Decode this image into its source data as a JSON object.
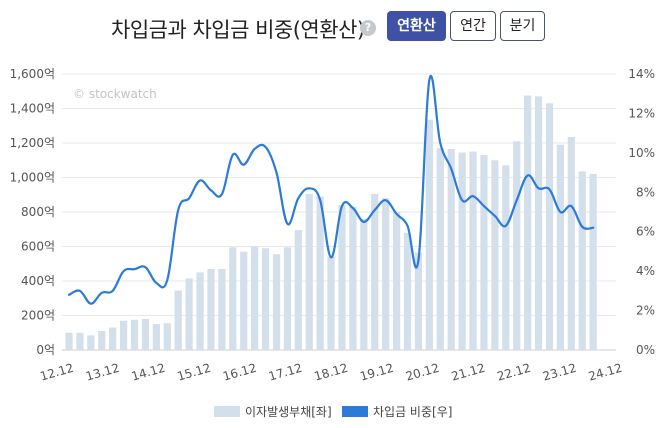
{
  "header": {
    "title": "차입금과 차입금 비중(연환산)",
    "help_icon": "question-icon",
    "help_glyph": "?",
    "buttons": [
      {
        "label": "연환산",
        "active": true
      },
      {
        "label": "연간",
        "active": false
      },
      {
        "label": "분기",
        "active": false
      }
    ]
  },
  "colors": {
    "bar": "#d4dfec",
    "line": "#2b7bd8",
    "grid": "#e8e8e8"
  },
  "watermark": "© stockwatch",
  "chart_data": {
    "type": "bar+line",
    "title": "차입금과 차입금 비중(연환산)",
    "x_tick_labels": [
      "12.12",
      "13.12",
      "14.12",
      "15.12",
      "16.12",
      "17.12",
      "18.12",
      "19.12",
      "20.12",
      "21.12",
      "22.12",
      "23.12",
      "24.12"
    ],
    "left_axis": {
      "unit": "억",
      "ylim": [
        0,
        1600
      ],
      "tick_labels": [
        "0억",
        "200억",
        "400억",
        "600억",
        "800억",
        "1,000억",
        "1,200억",
        "1,400억",
        "1,600억"
      ],
      "tick_values": [
        0,
        200,
        400,
        600,
        800,
        1000,
        1200,
        1400,
        1600
      ]
    },
    "right_axis": {
      "unit": "%",
      "ylim": [
        0,
        14
      ],
      "tick_labels": [
        "0%",
        "2%",
        "4%",
        "6%",
        "8%",
        "10%",
        "12%",
        "14%"
      ],
      "tick_values": [
        0,
        2,
        4,
        6,
        8,
        10,
        12,
        14
      ]
    },
    "legend": {
      "position": "bottom-center",
      "items": [
        {
          "name": "이자발생부채[좌]",
          "type": "bar"
        },
        {
          "name": "차입금 비중[우]",
          "type": "line"
        }
      ]
    },
    "series": [
      {
        "name": "이자발생부채[좌]",
        "type": "bar",
        "axis": "left",
        "values": [
          100,
          100,
          85,
          110,
          130,
          170,
          175,
          180,
          150,
          155,
          345,
          415,
          450,
          470,
          470,
          595,
          570,
          600,
          590,
          555,
          595,
          695,
          905,
          890,
          540,
          840,
          830,
          760,
          905,
          880,
          800,
          680,
          565,
          1335,
          1170,
          1165,
          1145,
          1150,
          1130,
          1100,
          1070,
          1210,
          1475,
          1470,
          1430,
          1190,
          1235,
          1035,
          1020
        ]
      },
      {
        "name": "차입금 비중[우]",
        "type": "line",
        "axis": "right",
        "values": [
          2.8,
          3.0,
          2.35,
          2.9,
          3.0,
          4.0,
          4.1,
          4.2,
          3.4,
          3.55,
          7.1,
          7.7,
          8.6,
          8.1,
          7.9,
          9.9,
          9.4,
          10.2,
          10.3,
          9.0,
          6.4,
          7.7,
          8.2,
          7.6,
          4.7,
          7.3,
          7.2,
          6.5,
          7.1,
          7.6,
          6.9,
          6.3,
          4.55,
          13.7,
          10.5,
          9.2,
          7.6,
          7.8,
          7.3,
          6.8,
          6.3,
          7.6,
          8.85,
          8.2,
          8.15,
          7.0,
          7.3,
          6.25,
          6.2
        ]
      }
    ]
  }
}
